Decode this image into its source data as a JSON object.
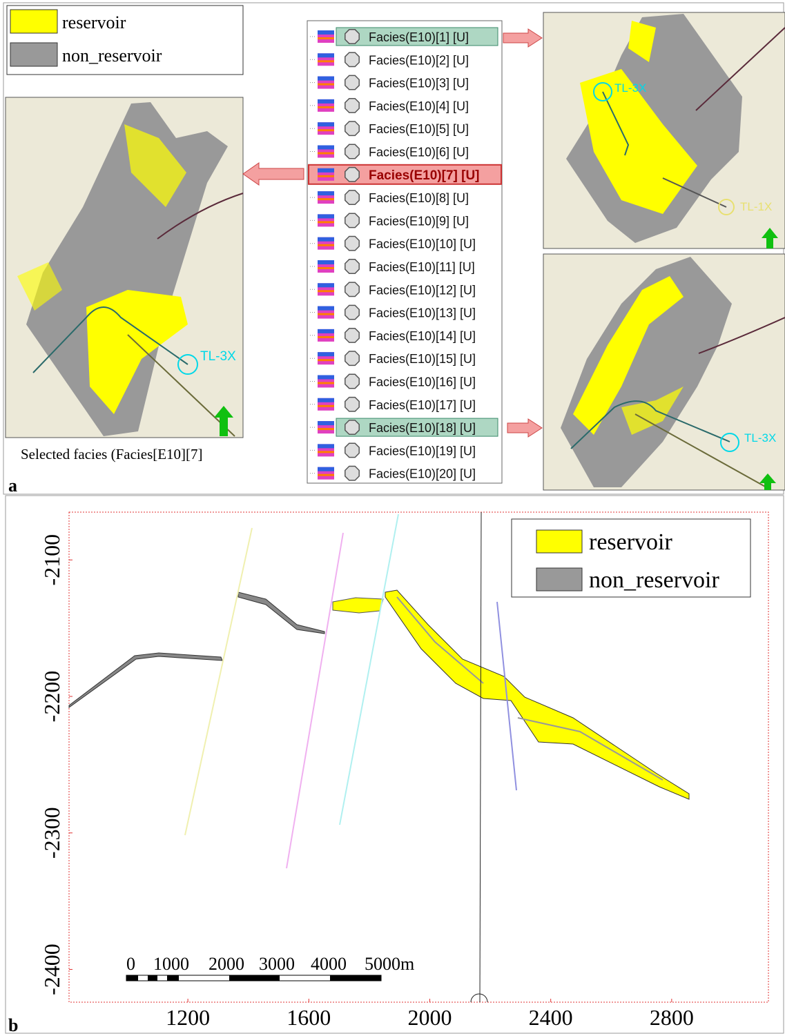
{
  "panel_a": {
    "label": "a",
    "legend": [
      {
        "label": "reservoir",
        "color": "#ffff00"
      },
      {
        "label": "non_reservoir",
        "color": "#999999"
      }
    ],
    "list_items": [
      "Facies(E10)[1] [U]",
      "Facies(E10)[2] [U]",
      "Facies(E10)[3] [U]",
      "Facies(E10)[4] [U]",
      "Facies(E10)[5] [U]",
      "Facies(E10)[6] [U]",
      "Facies(E10)[7] [U]",
      "Facies(E10)[8] [U]",
      "Facies(E10)[9] [U]",
      "Facies(E10)[10] [U]",
      "Facies(E10)[11] [U]",
      "Facies(E10)[12] [U]",
      "Facies(E10)[13] [U]",
      "Facies(E10)[14] [U]",
      "Facies(E10)[15] [U]",
      "Facies(E10)[16] [U]",
      "Facies(E10)[17] [U]",
      "Facies(E10)[18] [U]",
      "Facies(E10)[19] [U]",
      "Facies(E10)[20] [U]"
    ],
    "selected_caption": "Selected facies (Facies[E10][7]",
    "wells_left": [
      "TL-3X"
    ],
    "wells_top_right": [
      "TL-3X",
      "TL-1X"
    ],
    "wells_bottom_right": [
      "TL-3X"
    ]
  },
  "panel_b": {
    "label": "b",
    "legend": [
      {
        "label": "reservoir",
        "color": "#ffff00"
      },
      {
        "label": "non_reservoir",
        "color": "#999999"
      }
    ],
    "xlim": [
      807,
      3120
    ],
    "xticks": [
      1200,
      1600,
      2000,
      2400,
      2800
    ],
    "ylim": [
      -2424,
      -2065
    ],
    "yticks": [
      -2100,
      -2200,
      -2300,
      -2400
    ],
    "scale_bar": [
      "0",
      "1000",
      "2000",
      "3000",
      "4000",
      "5000m"
    ]
  }
}
